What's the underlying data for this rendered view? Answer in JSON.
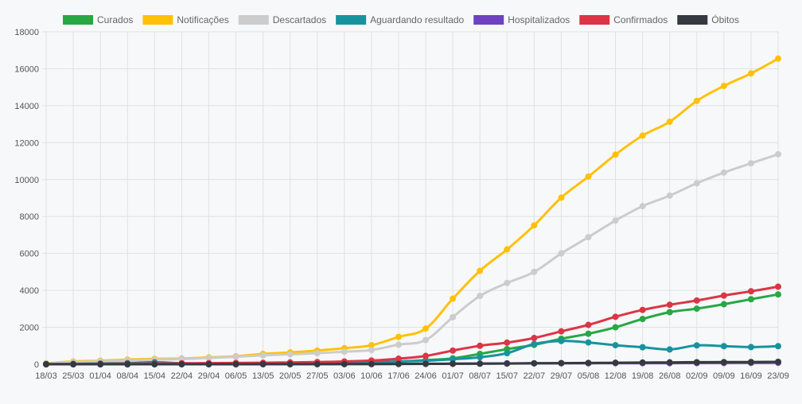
{
  "chart_data": {
    "type": "line",
    "categories": [
      "18/03",
      "25/03",
      "01/04",
      "08/04",
      "15/04",
      "22/04",
      "29/04",
      "06/05",
      "13/05",
      "20/05",
      "27/05",
      "03/06",
      "10/06",
      "17/06",
      "24/06",
      "01/07",
      "08/07",
      "15/07",
      "22/07",
      "29/07",
      "05/08",
      "12/08",
      "19/08",
      "26/08",
      "02/09",
      "09/09",
      "16/09",
      "23/09"
    ],
    "ylim": [
      0,
      18000
    ],
    "yticks": [
      0,
      2000,
      4000,
      6000,
      8000,
      10000,
      12000,
      14000,
      16000,
      18000
    ],
    "legend_position": "top",
    "grid": true,
    "series": [
      {
        "name": "Curados",
        "color": "#28a745",
        "values": [
          0,
          0,
          0,
          0,
          5,
          10,
          15,
          20,
          25,
          40,
          60,
          80,
          110,
          150,
          220,
          320,
          560,
          820,
          1050,
          1380,
          1650,
          2000,
          2450,
          2820,
          3010,
          3250,
          3520,
          3780
        ]
      },
      {
        "name": "Notificações",
        "color": "#ffc107",
        "values": [
          50,
          150,
          190,
          250,
          290,
          310,
          370,
          430,
          560,
          640,
          740,
          870,
          1030,
          1480,
          1930,
          3550,
          5060,
          6220,
          7520,
          9020,
          10160,
          11350,
          12380,
          13130,
          14260,
          15070,
          15750,
          16550
        ]
      },
      {
        "name": "Descartados",
        "color": "#cccccc",
        "values": [
          40,
          120,
          150,
          200,
          250,
          280,
          340,
          400,
          480,
          540,
          600,
          680,
          770,
          1060,
          1310,
          2550,
          3700,
          4400,
          5000,
          6000,
          6880,
          7780,
          8560,
          9130,
          9800,
          10380,
          10880,
          11370
        ]
      },
      {
        "name": "Aguardando resultado",
        "color": "#17939f",
        "values": [
          10,
          20,
          40,
          60,
          110,
          50,
          40,
          40,
          50,
          60,
          70,
          90,
          110,
          150,
          190,
          270,
          380,
          600,
          1100,
          1260,
          1180,
          1030,
          920,
          800,
          1020,
          980,
          930,
          980
        ]
      },
      {
        "name": "Hospitalizados",
        "color": "#6f42c1",
        "values": [
          0,
          0,
          0,
          0,
          5,
          5,
          5,
          5,
          5,
          5,
          10,
          10,
          15,
          20,
          25,
          30,
          40,
          45,
          50,
          55,
          55,
          60,
          60,
          60,
          65,
          70,
          75,
          80
        ]
      },
      {
        "name": "Confirmados",
        "color": "#dc3545",
        "values": [
          5,
          10,
          20,
          30,
          40,
          50,
          60,
          70,
          80,
          100,
          120,
          150,
          200,
          300,
          450,
          740,
          1000,
          1170,
          1420,
          1780,
          2130,
          2570,
          2940,
          3220,
          3450,
          3720,
          3950,
          4200
        ]
      },
      {
        "name": "Óbitos",
        "color": "#343a40",
        "values": [
          0,
          0,
          0,
          0,
          0,
          0,
          0,
          0,
          5,
          5,
          5,
          10,
          10,
          15,
          20,
          25,
          30,
          40,
          50,
          60,
          70,
          80,
          90,
          100,
          110,
          115,
          120,
          130
        ]
      }
    ]
  }
}
